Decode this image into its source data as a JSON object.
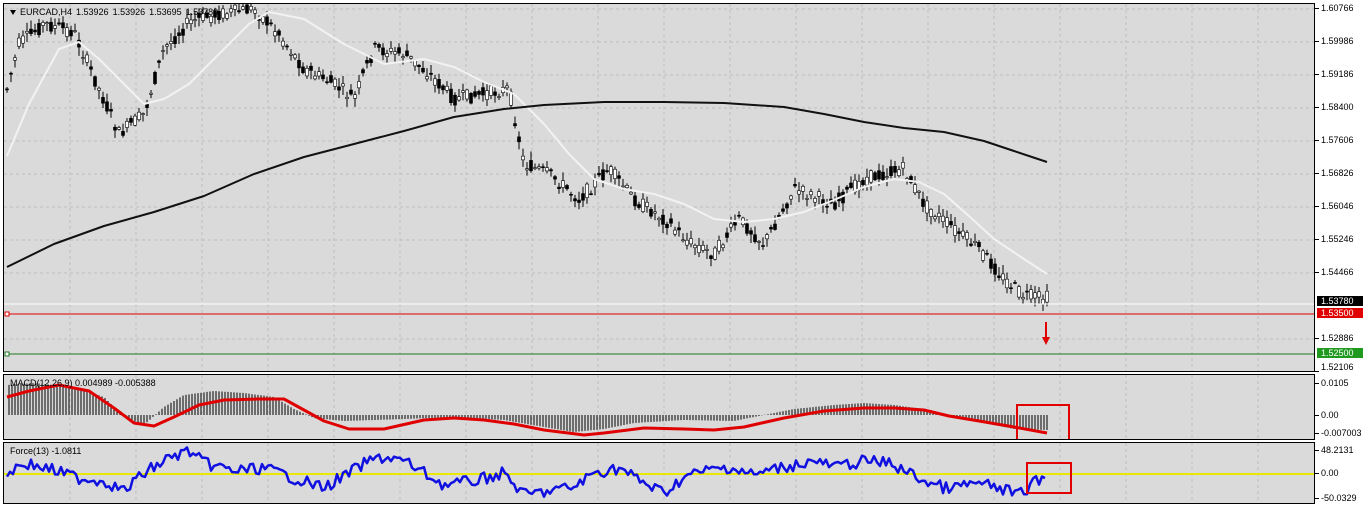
{
  "main": {
    "symbol": "EURCAD,H4",
    "ohlc": [
      "1.53926",
      "1.53926",
      "1.53695",
      "1.53780"
    ],
    "y_ticks": [
      "1.60766",
      "1.59986",
      "1.59186",
      "1.58400",
      "1.57606",
      "1.56826",
      "1.56046",
      "1.55246",
      "1.54466",
      "1.53686",
      "1.52886",
      "1.52106"
    ],
    "current_price": "1.53780",
    "sell_level": "1.53500",
    "take_profit_level": "1.52500",
    "colors": {
      "sell_line": "#e00000",
      "tp_line": "#1f7a1f",
      "fast_ma": "#f2f2f2",
      "slow_ma": "#111111",
      "arrow": "#e00000"
    }
  },
  "macd": {
    "label": "MACD(12,26,9) 0.004989 -0.005388",
    "y_ticks": [
      "0.0105",
      "0.00",
      "-0.007003"
    ],
    "colors": {
      "signal": "#e00000",
      "histogram": "#000000"
    }
  },
  "force": {
    "label": "Force(13) -1.0811",
    "y_ticks": [
      "48.2131",
      "0.00",
      "-50.0329"
    ],
    "colors": {
      "line": "#1010e0",
      "zero_line": "#e8e800"
    }
  },
  "highlight_color": "#e00000"
}
